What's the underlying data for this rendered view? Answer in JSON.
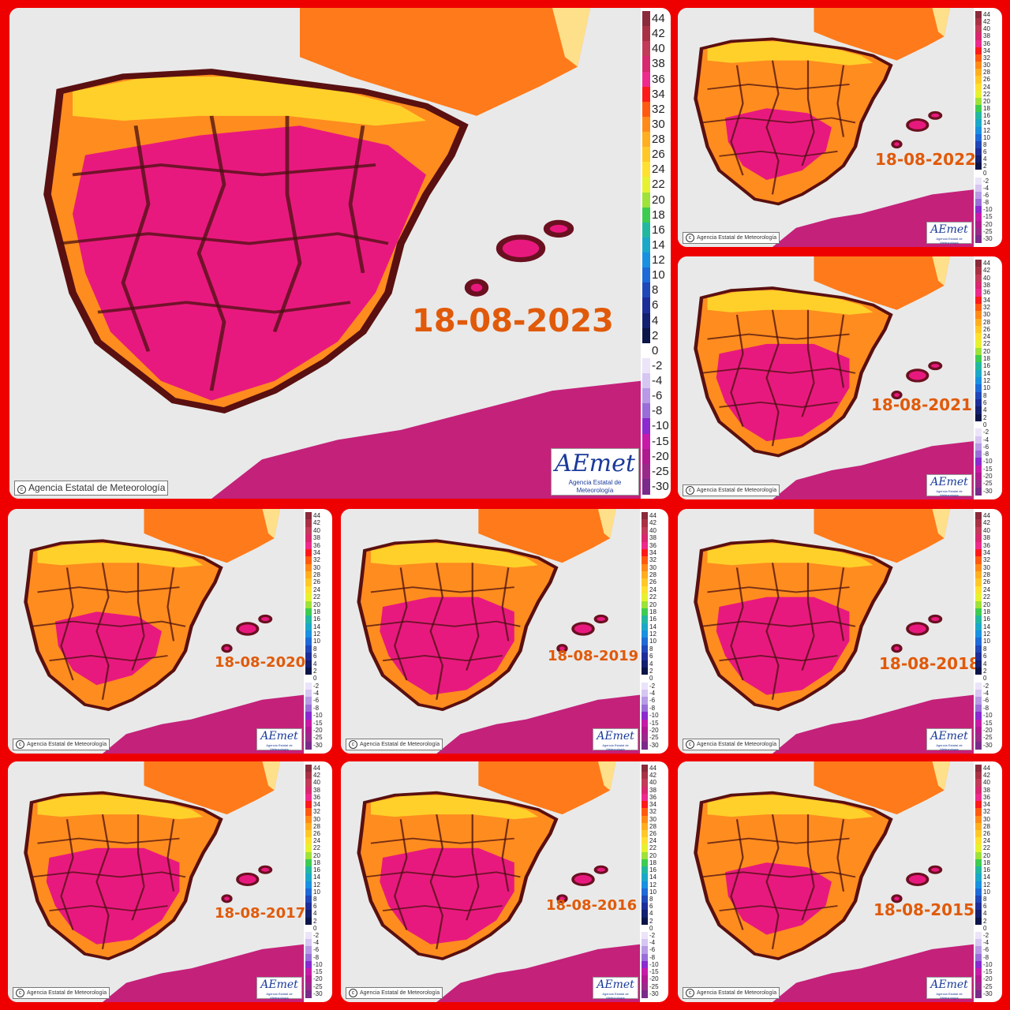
{
  "map_credit": "Agencia Estatal de Meteorología",
  "logo": {
    "text": "AEmet",
    "subtext": "Agencia Estatal de Meteorología"
  },
  "copyright_symbol": "c",
  "legend": {
    "labels": [
      "44",
      "42",
      "40",
      "38",
      "36",
      "34",
      "32",
      "30",
      "28",
      "26",
      "24",
      "22",
      "20",
      "18",
      "16",
      "14",
      "12",
      "10",
      "8",
      "6",
      "4",
      "2",
      "0",
      "-2",
      "-4",
      "-6",
      "-8",
      "-10",
      "-15",
      "-20",
      "-25",
      "-30"
    ],
    "colors": [
      "#8a2a3a",
      "#a83244",
      "#c23b58",
      "#d8286e",
      "#ee2a8c",
      "#ff1a1a",
      "#ff5a10",
      "#ff8a18",
      "#ffae20",
      "#ffc828",
      "#ffe030",
      "#e6f230",
      "#9ee23a",
      "#3ecc50",
      "#22b8a0",
      "#1aa8c8",
      "#1a90e0",
      "#1e6ad8",
      "#2048b8",
      "#1e2e98",
      "#142070",
      "#0c1548",
      "#ffffff",
      "#ece4f8",
      "#d6c6f2",
      "#b89ae6",
      "#9a6ed8",
      "#8a2ad0",
      "#c81aa8",
      "#b01a90",
      "#9a2a8a",
      "#7a2a8a"
    ]
  },
  "colors": {
    "frame": "#ee0000",
    "date_text": "#e05a0a"
  },
  "panels": [
    {
      "date": "18-08-2023",
      "heat": "extreme"
    },
    {
      "date": "18-08-2022",
      "heat": "moderate"
    },
    {
      "date": "18-08-2021",
      "heat": "high"
    },
    {
      "date": "18-08-2020",
      "heat": "moderate"
    },
    {
      "date": "18-08-2019",
      "heat": "high"
    },
    {
      "date": "18-08-2018",
      "heat": "high"
    },
    {
      "date": "18-08-2017",
      "heat": "high"
    },
    {
      "date": "18-08-2016",
      "heat": "high"
    },
    {
      "date": "18-08-2015",
      "heat": "moderate"
    }
  ]
}
